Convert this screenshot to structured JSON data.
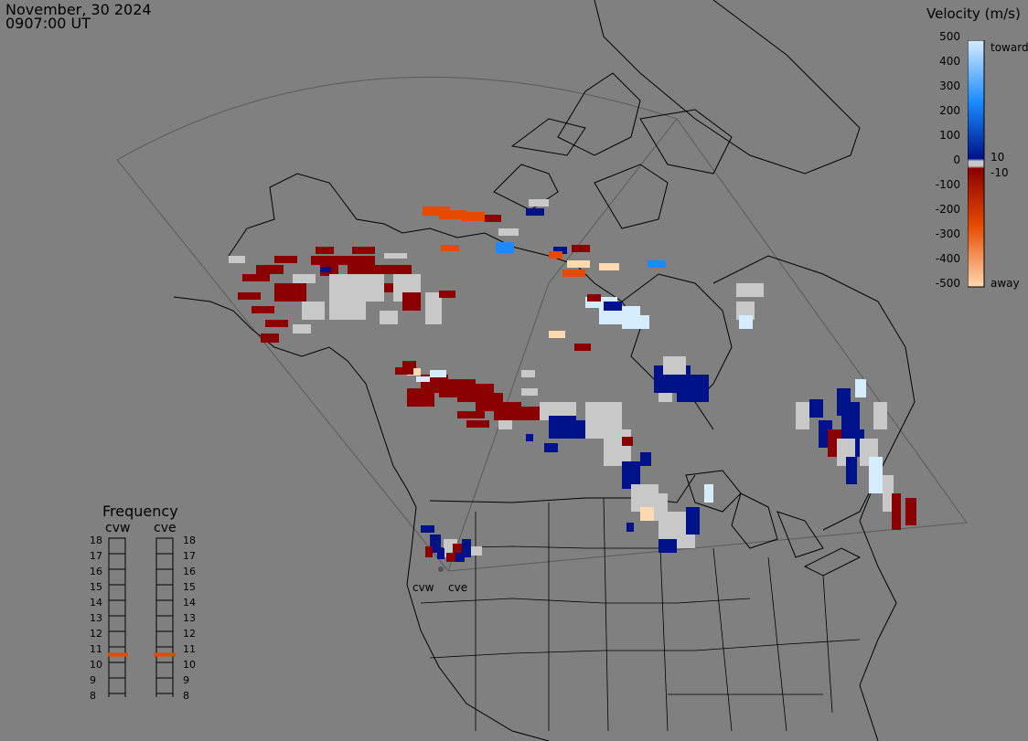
{
  "header": {
    "date": "November, 30 2024",
    "time": "0907:00 UT"
  },
  "velocity_scale": {
    "title": "Velocity (m/s)",
    "ticks": [
      "500",
      "400",
      "300",
      "200",
      "100",
      "0",
      "-100",
      "-200",
      "-300",
      "-400",
      "-500"
    ],
    "near_zero_labels": [
      "10",
      "-10"
    ],
    "toward_label": "toward",
    "away_label": "away",
    "colors": {
      "toward_max": "#d6ecff",
      "toward_mid": "#1a8cff",
      "toward_low": "#00128a",
      "zero": "#c8c8c8",
      "away_low": "#8b0000",
      "away_mid": "#e64a00",
      "away_max": "#ffd9b0"
    }
  },
  "frequency": {
    "title": "Frequency",
    "stations": [
      "cvw",
      "cve"
    ],
    "ticks": [
      "18",
      "17",
      "16",
      "15",
      "14",
      "13",
      "12",
      "11",
      "10",
      "9",
      "8"
    ],
    "selected": {
      "cvw": 11,
      "cve": 11
    },
    "marker_color": "#e64a00"
  },
  "map": {
    "station_labels": [
      "cvw",
      "cve"
    ],
    "background_color": "#808080",
    "coastline_color": "#000000",
    "fov_color": "#555555"
  }
}
